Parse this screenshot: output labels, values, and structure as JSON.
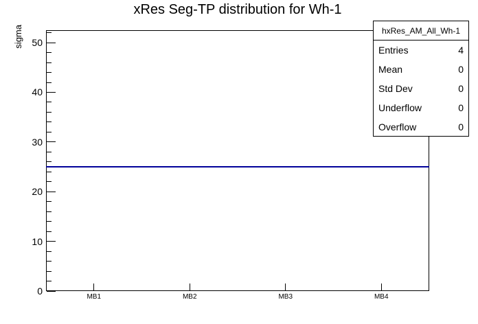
{
  "chart_data": {
    "type": "bar",
    "style": "histogram-outline",
    "title": "xRes Seg-TP distribution for Wh-1",
    "xlabel": "",
    "ylabel": "sigma",
    "categories": [
      "MB1",
      "MB2",
      "MB3",
      "MB4"
    ],
    "values": [
      25,
      25,
      25,
      25
    ],
    "ylim": [
      0,
      52.5
    ],
    "y_major_ticks": [
      0,
      10,
      20,
      30,
      40,
      50
    ],
    "y_minor_tick_step": 2,
    "grid": false,
    "legend_position": "none",
    "line_color": "#000099",
    "axis_color": "#000000",
    "background_color": "#ffffff"
  },
  "stats_box": {
    "header": "hxRes_AM_All_Wh-1",
    "rows": [
      {
        "label": "Entries",
        "value": "4"
      },
      {
        "label": "Mean",
        "value": "0"
      },
      {
        "label": "Std Dev",
        "value": "0"
      },
      {
        "label": "Underflow",
        "value": "0"
      },
      {
        "label": "Overflow",
        "value": "0"
      }
    ]
  }
}
